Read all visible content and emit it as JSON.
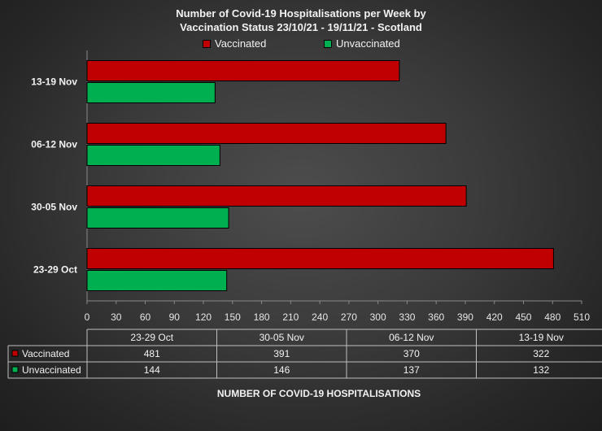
{
  "chart_data": {
    "type": "bar",
    "orientation": "horizontal",
    "title_lines": [
      "Number of Covid-19 Hospitalisations per Week by",
      "Vaccination Status 23/10/21 - 19/11/21 - Scotland"
    ],
    "categories": [
      "23-29 Oct",
      "30-05 Nov",
      "06-12 Nov",
      "13-19 Nov"
    ],
    "series": [
      {
        "name": "Vaccinated",
        "values": [
          481,
          391,
          370,
          322
        ],
        "color": "#c00000"
      },
      {
        "name": "Unvaccinated",
        "values": [
          144,
          146,
          137,
          132
        ],
        "color": "#00b050"
      }
    ],
    "xlabel": "NUMBER OF COVID-19 HOSPITALISATIONS",
    "xlim": [
      0,
      510
    ],
    "xticks": [
      0,
      30,
      60,
      90,
      120,
      150,
      180,
      210,
      240,
      270,
      300,
      330,
      360,
      390,
      420,
      450,
      480,
      510
    ],
    "grid": false,
    "legend_position": "top",
    "data_table": true
  }
}
